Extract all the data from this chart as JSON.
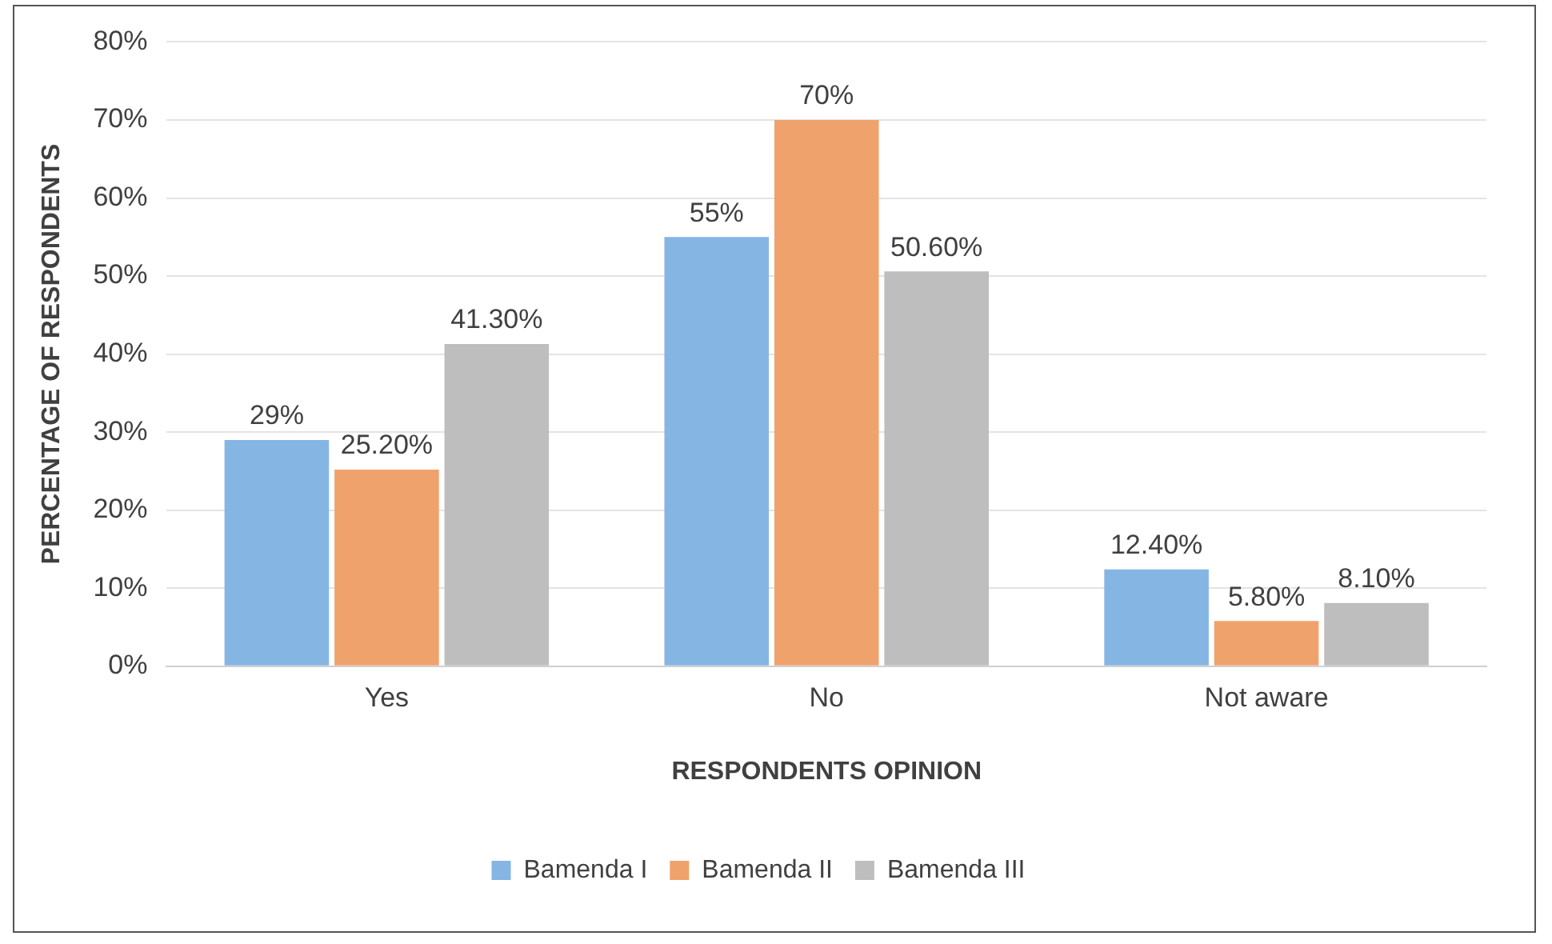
{
  "chart_data": {
    "type": "bar",
    "xlabel": "RESPONDENTS OPINION",
    "ylabel": "PERCENTAGE OF RESPONDENTS",
    "categories": [
      "Yes",
      "No",
      "Not aware"
    ],
    "series": [
      {
        "name": "Bamenda I",
        "color": "#85b5e3",
        "values": [
          29,
          55,
          12.4
        ],
        "value_labels": [
          "29%",
          "55%",
          "12.40%"
        ]
      },
      {
        "name": "Bamenda II",
        "color": "#f0a26c",
        "values": [
          25.2,
          70,
          5.8
        ],
        "value_labels": [
          "25.20%",
          "70%",
          "5.80%"
        ]
      },
      {
        "name": "Bamenda III",
        "color": "#bebebe",
        "values": [
          41.3,
          50.6,
          8.1
        ],
        "value_labels": [
          "41.30%",
          "50.60%",
          "8.10%"
        ]
      }
    ],
    "ylim": [
      0,
      80
    ],
    "yticks": [
      {
        "value": 0,
        "label": "0%"
      },
      {
        "value": 10,
        "label": "10%"
      },
      {
        "value": 20,
        "label": "20%"
      },
      {
        "value": 30,
        "label": "30%"
      },
      {
        "value": 40,
        "label": "40%"
      },
      {
        "value": 50,
        "label": "50%"
      },
      {
        "value": 60,
        "label": "60%"
      },
      {
        "value": 70,
        "label": "70%"
      },
      {
        "value": 80,
        "label": "80%"
      }
    ],
    "grid": "y",
    "legend": "bottom"
  }
}
